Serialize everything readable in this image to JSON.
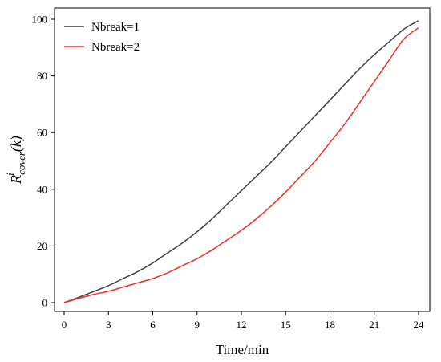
{
  "chart_data": {
    "type": "line",
    "xlabel": "Time/min",
    "ylabel": {
      "main": "R",
      "sup": "i",
      "sub": "cover",
      "arg": "(k)"
    },
    "xlim": [
      0,
      24
    ],
    "ylim": [
      0,
      100
    ],
    "xticks": [
      "0",
      "3",
      "6",
      "9",
      "12",
      "15",
      "18",
      "21",
      "24"
    ],
    "yticks": [
      "0",
      "20",
      "40",
      "60",
      "80",
      "100"
    ],
    "grid": false,
    "legend_position": "top-left",
    "series": [
      {
        "name": "Nbreak=1",
        "color": "#404040",
        "x": [
          0,
          1,
          2,
          3,
          4,
          5,
          6,
          7,
          8,
          9,
          10,
          11,
          12,
          13,
          14,
          15,
          16,
          17,
          18,
          19,
          20,
          21,
          22,
          23,
          24
        ],
        "y": [
          0,
          1.9,
          3.9,
          6.0,
          8.5,
          11.0,
          14.0,
          17.5,
          21.0,
          25.0,
          29.5,
          34.5,
          39.5,
          44.5,
          49.5,
          55.0,
          60.5,
          66.0,
          71.5,
          77.0,
          82.5,
          87.5,
          92.0,
          96.5,
          99.5
        ]
      },
      {
        "name": "Nbreak=2",
        "color": "#e8312a",
        "x": [
          0,
          1,
          2,
          3,
          4,
          5,
          6,
          7,
          8,
          9,
          10,
          11,
          12,
          13,
          14,
          15,
          16,
          17,
          18,
          19,
          20,
          21,
          22,
          23,
          24
        ],
        "y": [
          0,
          1.5,
          2.9,
          4.0,
          5.5,
          7.0,
          8.5,
          10.5,
          13.0,
          15.5,
          18.5,
          22.0,
          25.5,
          29.5,
          34.0,
          39.0,
          44.5,
          50.0,
          56.5,
          63.0,
          70.5,
          78.0,
          85.5,
          93.0,
          97.0
        ]
      }
    ]
  }
}
